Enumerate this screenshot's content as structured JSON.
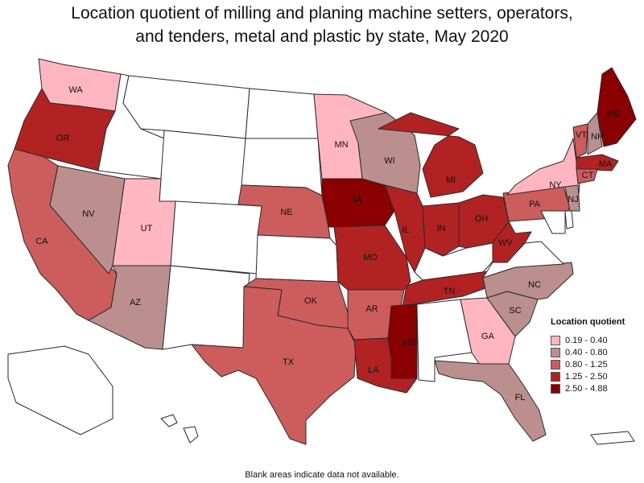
{
  "title_line1": "Location quotient of milling and planing machine setters, operators,",
  "title_line2": "and tenders, metal and plastic by state, May 2020",
  "legend": {
    "title": "Location quotient",
    "items": [
      {
        "label": "0.19 - 0.40",
        "color": "#ffb6c1"
      },
      {
        "label": "0.40 - 0.80",
        "color": "#bc8f8f"
      },
      {
        "label": "0.80 - 1.25",
        "color": "#cd5c5c"
      },
      {
        "label": "1.25 - 2.50",
        "color": "#b22222"
      },
      {
        "label": "2.50 - 4.88",
        "color": "#8b0000"
      }
    ]
  },
  "footnote": "Blank areas indicate data not available.",
  "states": [
    {
      "abbr": "WA",
      "class": 0
    },
    {
      "abbr": "OR",
      "class": 3
    },
    {
      "abbr": "CA",
      "class": 2
    },
    {
      "abbr": "NV",
      "class": 1
    },
    {
      "abbr": "UT",
      "class": 0
    },
    {
      "abbr": "AZ",
      "class": 1
    },
    {
      "abbr": "MN",
      "class": 0
    },
    {
      "abbr": "WI",
      "class": 1
    },
    {
      "abbr": "IA",
      "class": 4
    },
    {
      "abbr": "NE",
      "class": 2
    },
    {
      "abbr": "MO",
      "class": 3
    },
    {
      "abbr": "IL",
      "class": 3
    },
    {
      "abbr": "MI",
      "class": 3
    },
    {
      "abbr": "IN",
      "class": 3
    },
    {
      "abbr": "OH",
      "class": 3
    },
    {
      "abbr": "WV",
      "class": 3
    },
    {
      "abbr": "PA",
      "class": 2
    },
    {
      "abbr": "NY",
      "class": 0
    },
    {
      "abbr": "VT",
      "class": 2
    },
    {
      "abbr": "NH",
      "class": 1
    },
    {
      "abbr": "ME",
      "class": 4
    },
    {
      "abbr": "MA",
      "class": 3
    },
    {
      "abbr": "CT",
      "class": 2
    },
    {
      "abbr": "NJ",
      "class": 1
    },
    {
      "abbr": "OK",
      "class": 2
    },
    {
      "abbr": "TX",
      "class": 2
    },
    {
      "abbr": "AR",
      "class": 2
    },
    {
      "abbr": "LA",
      "class": 3
    },
    {
      "abbr": "MS",
      "class": 4
    },
    {
      "abbr": "TN",
      "class": 3
    },
    {
      "abbr": "NC",
      "class": 1
    },
    {
      "abbr": "SC",
      "class": 1
    },
    {
      "abbr": "GA",
      "class": 0
    },
    {
      "abbr": "FL",
      "class": 1
    }
  ]
}
